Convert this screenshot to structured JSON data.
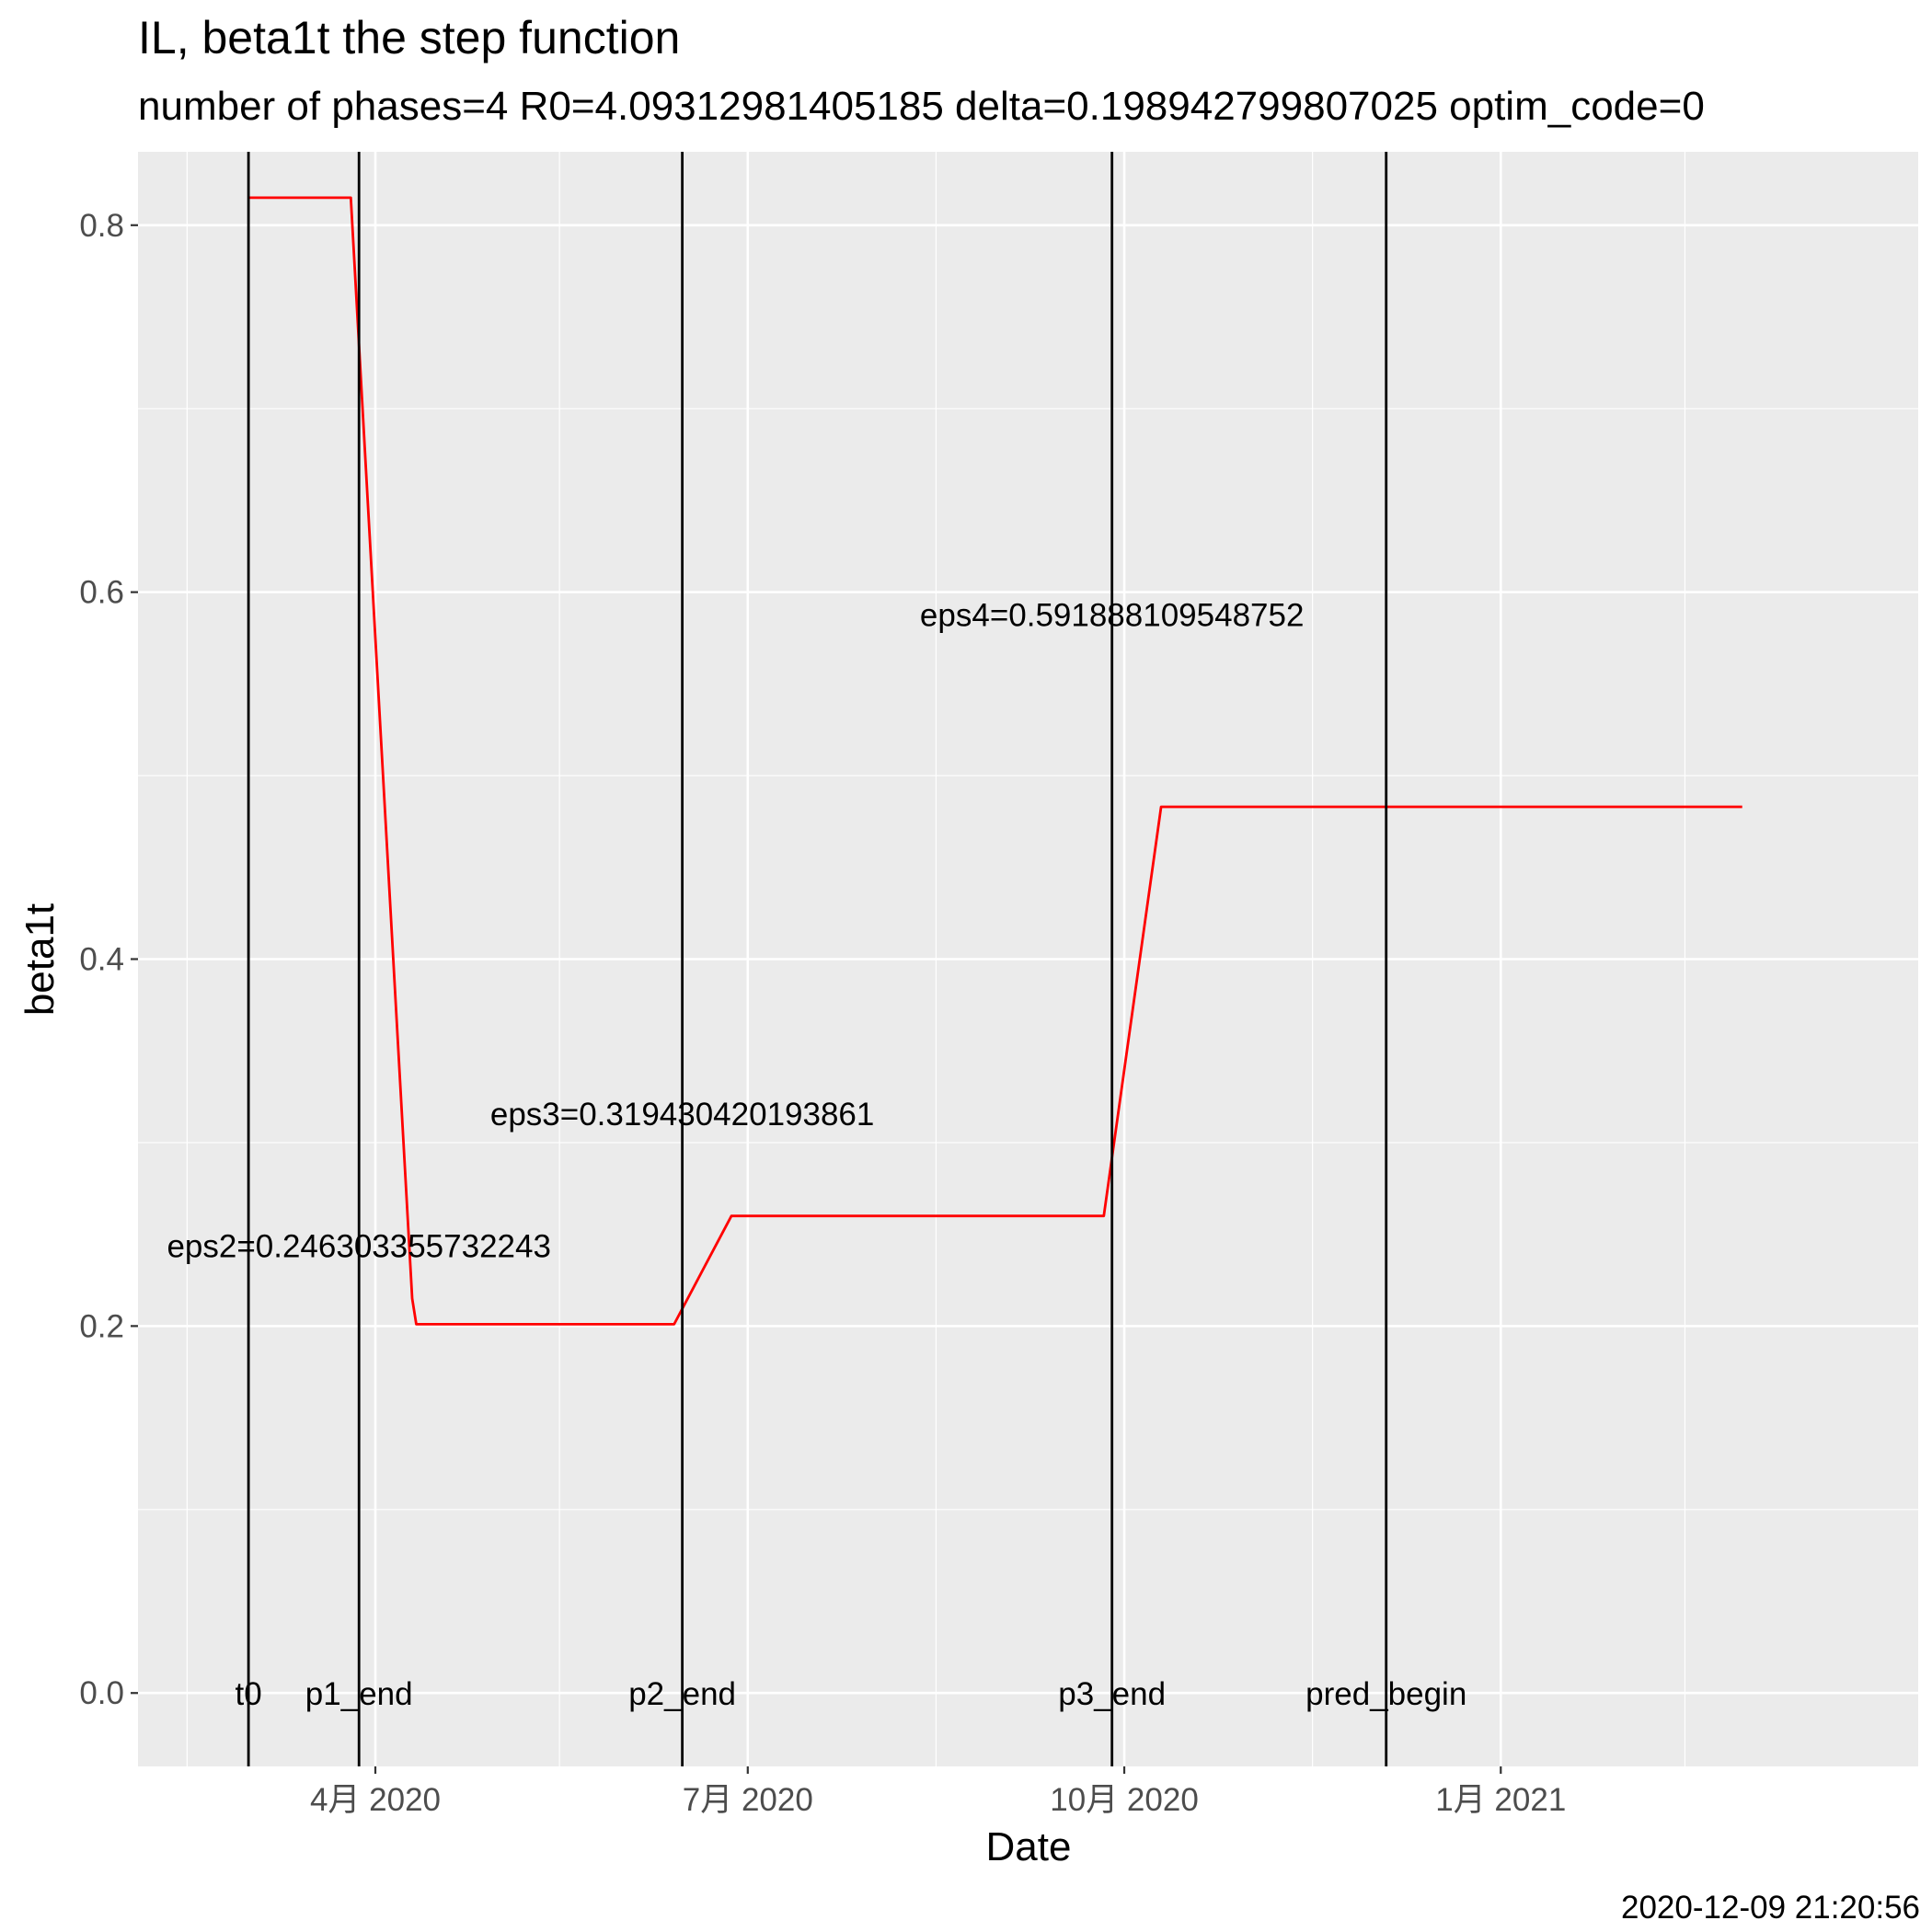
{
  "chart_data": {
    "type": "line",
    "title": "IL, beta1t the step function",
    "subtitle": "number of phases=4   R0=4.09312981405185   delta=0.198942799807025   optim_code=0",
    "xlabel": "Date",
    "ylabel": "beta1t",
    "caption": "2020-12-09 21:20:56",
    "x_axis": {
      "type": "date",
      "range": [
        "2020-02-03",
        "2021-04-13"
      ],
      "ticks": [
        {
          "date": "2020-04-01",
          "label": "4月 2020"
        },
        {
          "date": "2020-07-01",
          "label": "7月 2020"
        },
        {
          "date": "2020-10-01",
          "label": "10月 2020"
        },
        {
          "date": "2021-01-01",
          "label": "1月 2021"
        }
      ],
      "minor_ticks": [
        "2020-02-15",
        "2020-05-16",
        "2020-08-16",
        "2020-11-16",
        "2021-02-15"
      ]
    },
    "y_axis": {
      "range": [
        -0.04,
        0.84
      ],
      "ticks": [
        0.0,
        0.2,
        0.4,
        0.6,
        0.8
      ],
      "tick_labels": [
        "0.0",
        "0.2",
        "0.4",
        "0.6",
        "0.8"
      ],
      "minor_ticks": [
        0.1,
        0.3,
        0.5,
        0.7
      ]
    },
    "grid": true,
    "series": [
      {
        "color": "#ff0000",
        "points": [
          {
            "x": "2020-03-01",
            "y": 0.815
          },
          {
            "x": "2020-03-26",
            "y": 0.815
          },
          {
            "x": "2020-04-10",
            "y": 0.215
          },
          {
            "x": "2020-04-11",
            "y": 0.201
          },
          {
            "x": "2020-06-13",
            "y": 0.201
          },
          {
            "x": "2020-06-27",
            "y": 0.26
          },
          {
            "x": "2020-09-26",
            "y": 0.26
          },
          {
            "x": "2020-10-10",
            "y": 0.483
          },
          {
            "x": "2021-03-01",
            "y": 0.483
          }
        ]
      }
    ],
    "vlines": [
      {
        "x": "2020-03-01",
        "label": "t0"
      },
      {
        "x": "2020-03-28",
        "label": "p1_end"
      },
      {
        "x": "2020-06-15",
        "label": "p2_end"
      },
      {
        "x": "2020-09-28",
        "label": "p3_end"
      },
      {
        "x": "2020-12-04",
        "label": "pred_begin"
      }
    ],
    "vline_label_y": 0.0,
    "annotations": [
      {
        "text": "eps2=0.246303355732243",
        "x": "2020-03-28",
        "y": 0.244
      },
      {
        "text": "eps3=0.319430420193861",
        "x": "2020-06-15",
        "y": 0.316
      },
      {
        "text": "eps4=0.591888109548752",
        "x": "2020-09-28",
        "y": 0.588
      }
    ]
  }
}
